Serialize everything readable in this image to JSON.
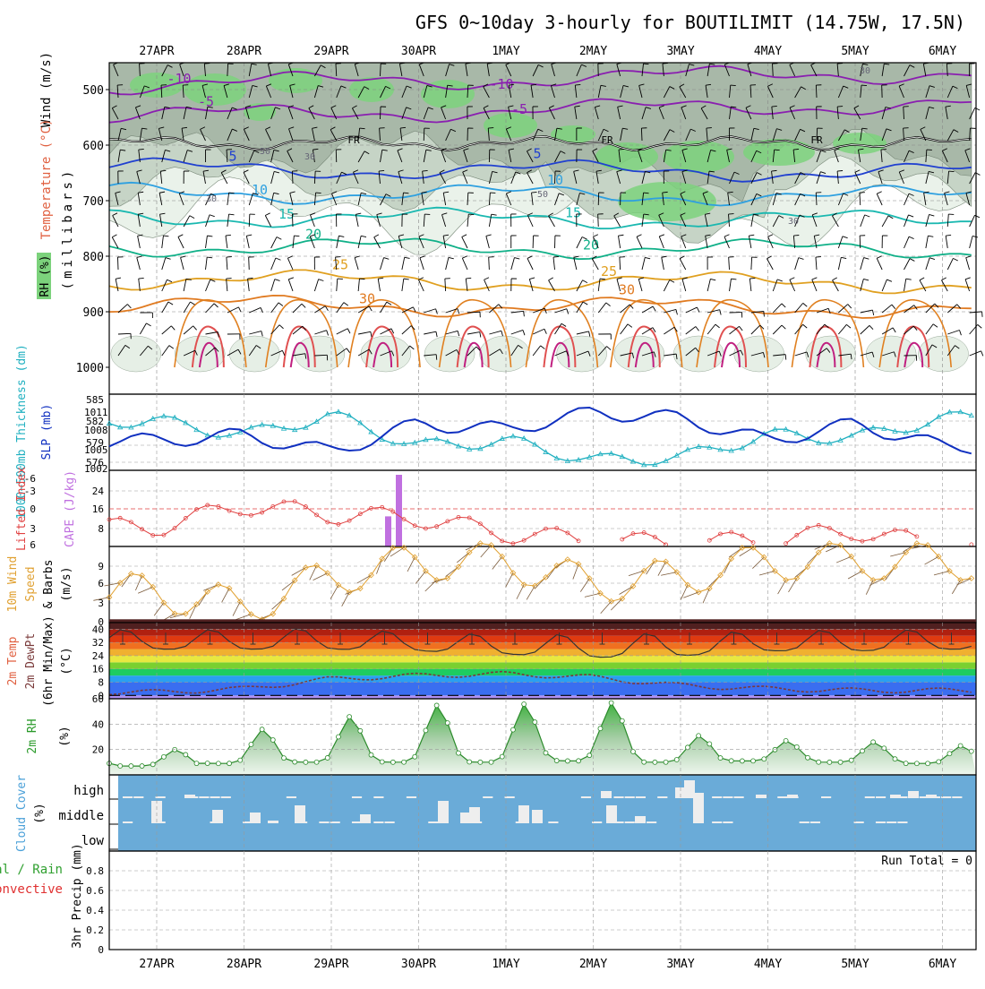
{
  "title": "GFS 0~10day 3-hourly for BOUTILIMIT (14.75W, 17.5N)",
  "dates": [
    "27APR",
    "28APR",
    "29APR",
    "30APR",
    "1MAY",
    "2MAY",
    "3MAY",
    "4MAY",
    "5MAY",
    "6MAY"
  ],
  "panels": {
    "upper": {
      "ylabels": [
        "RH (%)",
        "Temperature (°C)",
        "Wind (m/s)",
        "(millibars)"
      ],
      "ticks": [
        "500",
        "600",
        "700",
        "800",
        "900",
        "1000"
      ],
      "rh_contours": [
        "30",
        "50",
        "70",
        "90"
      ],
      "fr_label": "FR",
      "temp_labels": [
        {
          "text": "-10",
          "color": "#8a1fb0"
        },
        {
          "text": "-5",
          "color": "#8a1fb0"
        },
        {
          "text": "5",
          "color": "#2040d0"
        },
        {
          "text": "10",
          "color": "#2ea0e0"
        },
        {
          "text": "15",
          "color": "#1ab8b0"
        },
        {
          "text": "20",
          "color": "#10b088"
        },
        {
          "text": "25",
          "color": "#e0a020"
        },
        {
          "text": "30",
          "color": "#e07a20"
        }
      ]
    },
    "thickness": {
      "ylabel_left": "1000~500mb Thickness (dm)",
      "ylabel_right": "SLP (mb)",
      "ticks_left": [
        "576",
        "579",
        "582",
        "585"
      ],
      "ticks_right": [
        "1002",
        "1005",
        "1008",
        "1011"
      ]
    },
    "li": {
      "ylabel_left": "Lifted Index",
      "ylabel_right": "CAPE (J/kg)",
      "ticks_left": [
        "-6",
        "-3",
        "0",
        "3",
        "6"
      ],
      "ticks_right": [
        "8",
        "16",
        "24"
      ]
    },
    "wind10": {
      "ylabel": [
        "10m Wind",
        "Speed",
        "& Barbs",
        "(m/s)"
      ],
      "ticks": [
        "0",
        "3",
        "6",
        "9"
      ]
    },
    "temp2m": {
      "ylabel": [
        "2m Temp",
        "2m DewPt",
        "(6hr Min/Max)",
        "(°C)"
      ],
      "ticks": [
        "0",
        "8",
        "16",
        "24",
        "32",
        "40"
      ]
    },
    "rh2m": {
      "ylabel": [
        "2m RH",
        "(%)"
      ],
      "ticks": [
        "20",
        "40",
        "60"
      ]
    },
    "cloud": {
      "ylabel": [
        "Cloud Cover",
        "(%)"
      ],
      "levels": [
        "high",
        "middle",
        "low"
      ]
    },
    "precip": {
      "ylabel": [
        "Total / Rain",
        "Convective",
        "3hr Precip (mm)"
      ],
      "ticks": [
        "0",
        "0.2",
        "0.4",
        "0.6",
        "0.8"
      ],
      "run_total": "Run Total = 0"
    }
  },
  "chart_data": [
    {
      "type": "line",
      "title": "1000~500mb Thickness (dm) & SLP (mb)",
      "x": [
        "27APR",
        "28APR",
        "29APR",
        "30APR",
        "1MAY",
        "2MAY",
        "3MAY",
        "4MAY",
        "5MAY",
        "6MAY"
      ],
      "series": [
        {
          "name": "Thickness (dm)",
          "color": "#20b0c0",
          "values": [
            582.5,
            580,
            583.5,
            578,
            579,
            575.5,
            576,
            580,
            579.5,
            583
          ]
        },
        {
          "name": "SLP (mb)",
          "color": "#1030c0",
          "values": [
            1006,
            1007,
            1004,
            1009,
            1008,
            1011,
            1010,
            1006,
            1009,
            1005
          ]
        }
      ],
      "ylim_left": [
        575,
        586
      ],
      "ylim_right": [
        1002,
        1013
      ]
    },
    {
      "type": "line",
      "title": "Lifted Index / CAPE",
      "x": [
        "27APR",
        "28APR",
        "29APR",
        "30APR",
        "1MAY",
        "2MAY",
        "3MAY",
        "4MAY",
        "5MAY",
        "6MAY"
      ],
      "series": [
        {
          "name": "Lifted Index",
          "color": "#e04040",
          "values": [
            3,
            -0.5,
            1,
            1.5,
            4,
            5,
            5.5,
            5,
            3.5,
            6
          ]
        },
        {
          "name": "CAPE (J/kg)",
          "color": "#c070e0",
          "bars": [
            {
              "x": "29APR 18Z",
              "value": 10
            },
            {
              "x": "29APR 21Z",
              "value": 30
            }
          ]
        }
      ],
      "ylim_left": [
        6,
        -6
      ],
      "ylim_right": [
        0,
        32
      ]
    },
    {
      "type": "line",
      "title": "10m Wind Speed & Barbs (m/s)",
      "x": [
        "27APR",
        "28APR",
        "29APR",
        "30APR",
        "1MAY",
        "2MAY",
        "3MAY",
        "4MAY",
        "5MAY",
        "6MAY"
      ],
      "series": [
        {
          "name": "10m Wind Speed",
          "color": "#e0a030",
          "values": [
            4,
            2,
            6,
            8,
            8,
            5,
            6,
            8,
            8,
            8
          ]
        }
      ],
      "ylim": [
        0,
        10
      ]
    },
    {
      "type": "area",
      "title": "2m Temp / 2m DewPt (°C)",
      "x": [
        "27APR",
        "28APR",
        "29APR",
        "30APR",
        "1MAY",
        "2MAY",
        "3MAY",
        "4MAY",
        "5MAY",
        "6MAY"
      ],
      "series": [
        {
          "name": "2m Temp max",
          "values": [
            40,
            40,
            41,
            38,
            37,
            37,
            38,
            39,
            40,
            40
          ]
        },
        {
          "name": "2m Temp min",
          "values": [
            28,
            28,
            28,
            27,
            25,
            23,
            24,
            27,
            27,
            28
          ]
        },
        {
          "name": "2m DewPt",
          "values": [
            2,
            4,
            10,
            12,
            13,
            11,
            6,
            4,
            3,
            3
          ]
        }
      ],
      "ylim": [
        -2,
        44
      ]
    },
    {
      "type": "area",
      "title": "2m RH (%)",
      "x": [
        "27APR",
        "28APR",
        "29APR",
        "30APR",
        "1MAY",
        "2MAY",
        "3MAY",
        "4MAY",
        "5MAY",
        "6MAY"
      ],
      "series": [
        {
          "name": "2m RH",
          "color": "#30a030",
          "peaks": [
            20,
            36,
            46,
            55,
            56,
            57,
            31,
            27,
            26,
            23
          ],
          "troughs": [
            7,
            9,
            10,
            10,
            10,
            11,
            10,
            11,
            10,
            9
          ]
        }
      ],
      "ylim": [
        0,
        60
      ]
    },
    {
      "type": "bar",
      "title": "Cloud Cover (%)",
      "x": [
        "27APR",
        "28APR",
        "29APR",
        "30APR",
        "1MAY",
        "2MAY",
        "3MAY",
        "4MAY",
        "5MAY",
        "6MAY"
      ],
      "series": [
        {
          "name": "high",
          "values": [
            0,
            0,
            0,
            0,
            0,
            5,
            35,
            3,
            10,
            5
          ]
        },
        {
          "name": "middle",
          "values": [
            20,
            12,
            20,
            12,
            25,
            20,
            25,
            0,
            0,
            0
          ]
        },
        {
          "name": "low",
          "values": [
            0,
            0,
            0,
            0,
            0,
            0,
            0,
            0,
            0,
            0
          ]
        }
      ]
    },
    {
      "type": "bar",
      "title": "3hr Precip (mm)",
      "x": [
        "27APR",
        "28APR",
        "29APR",
        "30APR",
        "1MAY",
        "2MAY",
        "3MAY",
        "4MAY",
        "5MAY",
        "6MAY"
      ],
      "series": [
        {
          "name": "Total / Rain",
          "color": "#30a030",
          "values": [
            0,
            0,
            0,
            0,
            0,
            0,
            0,
            0,
            0,
            0
          ]
        },
        {
          "name": "Convective",
          "color": "#e03030",
          "values": [
            0,
            0,
            0,
            0,
            0,
            0,
            0,
            0,
            0,
            0
          ]
        }
      ],
      "ylim": [
        0,
        1
      ]
    }
  ]
}
